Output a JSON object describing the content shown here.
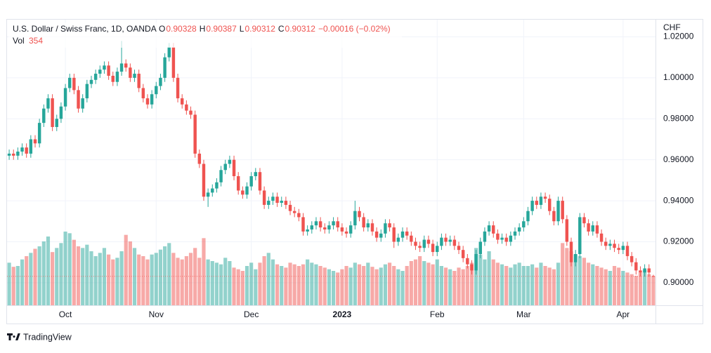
{
  "chart_data": {
    "type": "candlestick",
    "title": "U.S. Dollar / Swiss Franc, 1D, OANDA",
    "ohlc_labels": [
      "O",
      "H",
      "L",
      "C"
    ],
    "change": "−0.00016 (−0.02%)",
    "volume_label": "Vol",
    "currency": "CHF",
    "brand": "TradingView",
    "up_color": "#26a69a",
    "down_color": "#ef5350",
    "grid": true,
    "ylim": [
      0.889,
      1.0277
    ],
    "yticks": [
      {
        "value": 0.9,
        "label": "0.90000"
      },
      {
        "value": 0.92,
        "label": "0.92000"
      },
      {
        "value": 0.94,
        "label": "0.94000"
      },
      {
        "value": 0.96,
        "label": "0.96000"
      },
      {
        "value": 0.98,
        "label": "0.98000"
      },
      {
        "value": 1,
        "label": "1.00000"
      },
      {
        "value": 1.02,
        "label": "1.02000"
      }
    ],
    "xticks": [
      {
        "value": 13,
        "label": "Oct"
      },
      {
        "value": 34,
        "label": "Nov"
      },
      {
        "value": 56,
        "label": "Dec"
      },
      {
        "value": 77,
        "label": "2023"
      },
      {
        "value": 99,
        "label": "Feb"
      },
      {
        "value": 119,
        "label": "Mar"
      },
      {
        "value": 142,
        "label": "Apr"
      }
    ],
    "open": [
      0.962,
      0.963,
      0.962,
      0.964,
      0.966,
      0.963,
      0.97,
      0.968,
      0.978,
      0.985,
      0.99,
      0.976,
      0.98,
      0.986,
      0.995,
      1.0,
      0.994,
      0.985,
      0.99,
      0.997,
      0.999,
      1.002,
      1.004,
      1.006,
      1.001,
      0.998,
      1.003,
      1.007,
      1.005,
      1.0,
      1.002,
      0.995,
      0.99,
      0.987,
      0.992,
      0.996,
      1.0,
      1.01,
      1.015,
      1.0,
      0.99,
      0.987,
      0.984,
      0.982,
      0.963,
      0.958,
      0.942,
      0.944,
      0.946,
      0.949,
      0.955,
      0.958,
      0.96,
      0.952,
      0.945,
      0.943,
      0.947,
      0.952,
      0.954,
      0.945,
      0.938,
      0.94,
      0.942,
      0.939,
      0.94,
      0.938,
      0.935,
      0.934,
      0.932,
      0.925,
      0.926,
      0.928,
      0.93,
      0.927,
      0.926,
      0.928,
      0.93,
      0.927,
      0.925,
      0.924,
      0.928,
      0.935,
      0.932,
      0.927,
      0.929,
      0.925,
      0.922,
      0.924,
      0.929,
      0.927,
      0.92,
      0.922,
      0.925,
      0.923,
      0.92,
      0.918,
      0.917,
      0.921,
      0.919,
      0.915,
      0.918,
      0.922,
      0.92,
      0.921,
      0.918,
      0.916,
      0.912,
      0.909,
      0.906,
      0.914,
      0.92,
      0.925,
      0.928,
      0.924,
      0.921,
      0.922,
      0.92,
      0.923,
      0.925,
      0.927,
      0.93,
      0.935,
      0.94,
      0.938,
      0.942,
      0.941,
      0.935,
      0.93,
      0.94,
      0.931,
      0.92,
      0.91,
      0.914,
      0.932,
      0.929,
      0.925,
      0.928,
      0.924,
      0.92,
      0.918,
      0.919,
      0.917,
      0.916,
      0.918,
      0.913,
      0.91,
      0.906,
      0.905,
      0.907,
      0.90328
    ],
    "high": [
      0.965,
      0.965,
      0.966,
      0.968,
      0.968,
      0.972,
      0.972,
      0.98,
      0.987,
      0.992,
      0.992,
      0.982,
      0.988,
      0.997,
      1.002,
      1.002,
      0.996,
      0.992,
      0.999,
      1.001,
      1.004,
      1.006,
      1.008,
      1.008,
      1.003,
      1.005,
      1.018,
      1.009,
      1.007,
      1.004,
      1.004,
      0.997,
      0.992,
      0.994,
      0.998,
      1.002,
      1.012,
      1.017,
      1.017,
      1.002,
      0.992,
      0.989,
      0.986,
      0.984,
      0.965,
      0.96,
      0.946,
      0.948,
      0.951,
      0.957,
      0.96,
      0.962,
      0.962,
      0.954,
      0.947,
      0.949,
      0.954,
      0.956,
      0.956,
      0.947,
      0.942,
      0.944,
      0.944,
      0.942,
      0.942,
      0.94,
      0.937,
      0.936,
      0.934,
      0.928,
      0.93,
      0.932,
      0.932,
      0.929,
      0.93,
      0.932,
      0.932,
      0.929,
      0.927,
      0.93,
      0.94,
      0.937,
      0.934,
      0.931,
      0.931,
      0.927,
      0.926,
      0.931,
      0.931,
      0.929,
      0.924,
      0.927,
      0.927,
      0.925,
      0.922,
      0.92,
      0.923,
      0.923,
      0.921,
      0.92,
      0.924,
      0.924,
      0.923,
      0.923,
      0.92,
      0.918,
      0.914,
      0.911,
      0.916,
      0.922,
      0.927,
      0.93,
      0.93,
      0.926,
      0.924,
      0.924,
      0.925,
      0.927,
      0.929,
      0.932,
      0.937,
      0.942,
      0.942,
      0.944,
      0.944,
      0.943,
      0.937,
      0.942,
      0.942,
      0.933,
      0.922,
      0.916,
      0.934,
      0.934,
      0.931,
      0.93,
      0.93,
      0.926,
      0.922,
      0.921,
      0.921,
      0.919,
      0.92,
      0.92,
      0.915,
      0.912,
      0.908,
      0.909,
      0.909,
      0.90387
    ],
    "low": [
      0.96,
      0.96,
      0.96,
      0.962,
      0.961,
      0.961,
      0.966,
      0.966,
      0.976,
      0.983,
      0.974,
      0.974,
      0.978,
      0.984,
      0.993,
      0.992,
      0.983,
      0.983,
      0.988,
      0.995,
      0.997,
      1.0,
      1.002,
      0.999,
      0.996,
      0.996,
      1.001,
      1.003,
      0.998,
      0.998,
      0.993,
      0.988,
      0.985,
      0.985,
      0.99,
      0.994,
      0.998,
      1.008,
      0.998,
      0.988,
      0.985,
      0.982,
      0.98,
      0.961,
      0.956,
      0.94,
      0.937,
      0.942,
      0.944,
      0.947,
      0.953,
      0.956,
      0.95,
      0.943,
      0.941,
      0.941,
      0.945,
      0.95,
      0.943,
      0.936,
      0.936,
      0.938,
      0.937,
      0.937,
      0.936,
      0.933,
      0.932,
      0.93,
      0.923,
      0.923,
      0.924,
      0.926,
      0.925,
      0.924,
      0.924,
      0.926,
      0.925,
      0.923,
      0.922,
      0.922,
      0.926,
      0.93,
      0.925,
      0.925,
      0.923,
      0.92,
      0.92,
      0.922,
      0.925,
      0.917,
      0.918,
      0.92,
      0.921,
      0.918,
      0.916,
      0.915,
      0.915,
      0.917,
      0.913,
      0.913,
      0.916,
      0.918,
      0.918,
      0.916,
      0.914,
      0.91,
      0.907,
      0.904,
      0.904,
      0.912,
      0.918,
      0.923,
      0.922,
      0.919,
      0.919,
      0.918,
      0.918,
      0.921,
      0.923,
      0.925,
      0.928,
      0.933,
      0.936,
      0.936,
      0.939,
      0.933,
      0.928,
      0.928,
      0.929,
      0.918,
      0.908,
      0.908,
      0.912,
      0.927,
      0.923,
      0.923,
      0.922,
      0.918,
      0.916,
      0.916,
      0.915,
      0.914,
      0.914,
      0.911,
      0.908,
      0.904,
      0.903,
      0.903,
      0.903,
      0.90312
    ],
    "close": [
      0.963,
      0.962,
      0.964,
      0.966,
      0.963,
      0.97,
      0.968,
      0.978,
      0.985,
      0.99,
      0.976,
      0.98,
      0.986,
      0.995,
      1.0,
      0.994,
      0.985,
      0.99,
      0.997,
      0.999,
      1.002,
      1.004,
      1.006,
      1.001,
      0.998,
      1.003,
      1.007,
      1.005,
      1.0,
      1.002,
      0.995,
      0.99,
      0.987,
      0.992,
      0.996,
      1.0,
      1.01,
      1.015,
      1.0,
      0.99,
      0.987,
      0.984,
      0.982,
      0.963,
      0.958,
      0.942,
      0.944,
      0.946,
      0.949,
      0.955,
      0.958,
      0.96,
      0.952,
      0.945,
      0.943,
      0.947,
      0.952,
      0.954,
      0.945,
      0.938,
      0.94,
      0.942,
      0.939,
      0.94,
      0.938,
      0.935,
      0.934,
      0.932,
      0.925,
      0.926,
      0.928,
      0.93,
      0.927,
      0.926,
      0.928,
      0.93,
      0.927,
      0.925,
      0.924,
      0.928,
      0.935,
      0.932,
      0.927,
      0.929,
      0.925,
      0.922,
      0.924,
      0.929,
      0.927,
      0.92,
      0.922,
      0.925,
      0.923,
      0.92,
      0.918,
      0.917,
      0.921,
      0.919,
      0.915,
      0.918,
      0.922,
      0.92,
      0.921,
      0.918,
      0.916,
      0.912,
      0.909,
      0.906,
      0.914,
      0.92,
      0.925,
      0.928,
      0.924,
      0.921,
      0.922,
      0.92,
      0.923,
      0.925,
      0.927,
      0.93,
      0.935,
      0.94,
      0.938,
      0.942,
      0.941,
      0.935,
      0.93,
      0.94,
      0.931,
      0.92,
      0.91,
      0.914,
      0.932,
      0.929,
      0.925,
      0.928,
      0.924,
      0.92,
      0.918,
      0.919,
      0.917,
      0.916,
      0.918,
      0.913,
      0.91,
      0.906,
      0.905,
      0.907,
      0.905,
      0.90312
    ],
    "volume": [
      520,
      470,
      480,
      560,
      600,
      640,
      690,
      720,
      780,
      840,
      650,
      700,
      760,
      900,
      880,
      800,
      720,
      700,
      740,
      660,
      600,
      640,
      700,
      620,
      560,
      580,
      660,
      860,
      780,
      700,
      620,
      600,
      560,
      620,
      640,
      680,
      720,
      760,
      640,
      580,
      560,
      600,
      640,
      700,
      580,
      820,
      560,
      540,
      520,
      500,
      580,
      540,
      460,
      440,
      420,
      480,
      520,
      440,
      520,
      600,
      640,
      560,
      500,
      480,
      460,
      520,
      500,
      480,
      500,
      560,
      520,
      500,
      480,
      460,
      440,
      420,
      400,
      440,
      480,
      460,
      520,
      500,
      480,
      520,
      470,
      440,
      460,
      500,
      520,
      480,
      440,
      420,
      480,
      540,
      560,
      600,
      540,
      520,
      500,
      560,
      480,
      460,
      440,
      420,
      460,
      440,
      480,
      520,
      700,
      620,
      560,
      660,
      560,
      520,
      500,
      480,
      460,
      500,
      520,
      480,
      480,
      500,
      460,
      520,
      480,
      460,
      440,
      520,
      760,
      700,
      660,
      620,
      600,
      580,
      520,
      500,
      480,
      460,
      440,
      420,
      480,
      460,
      420,
      400,
      380,
      360,
      400,
      430,
      380,
      354
    ]
  }
}
